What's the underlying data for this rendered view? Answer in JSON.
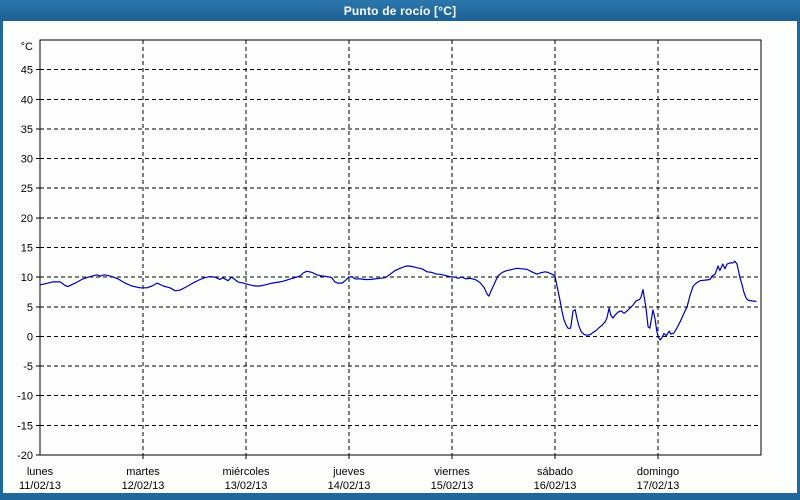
{
  "window": {
    "title": "Punto de rocío [°C]"
  },
  "colors": {
    "chrome": "#20689c",
    "chrome_light": "#2b77ae",
    "chrome_dark": "#1c5f93",
    "plot_background": "#fdfffd",
    "plot_border": "#000000",
    "grid": "#000000",
    "axis_text": "#000000",
    "title_text": "#ffffff",
    "line": "#0000b3"
  },
  "chart_data": {
    "type": "line",
    "title": "Punto de rocío [°C]",
    "unit_label": "°C",
    "ylim": [
      -20,
      50
    ],
    "y_ticks": [
      45,
      40,
      35,
      30,
      25,
      20,
      15,
      10,
      5,
      0,
      -5,
      -10,
      -15,
      -20
    ],
    "x_hours_total": 168,
    "grid": "dashed",
    "legend_position": "none",
    "x_days": [
      {
        "name": "lunes",
        "date": "11/02/13"
      },
      {
        "name": "martes",
        "date": "12/02/13"
      },
      {
        "name": "miércoles",
        "date": "13/02/13"
      },
      {
        "name": "jueves",
        "date": "14/02/13"
      },
      {
        "name": "viernes",
        "date": "15/02/13"
      },
      {
        "name": "sábado",
        "date": "16/02/13"
      },
      {
        "name": "domingo",
        "date": "17/02/13"
      }
    ],
    "series": [
      {
        "name": "Punto de rocío",
        "color": "#0000b3",
        "points": [
          [
            0,
            8.7
          ],
          [
            1.9,
            9.0
          ],
          [
            3,
            9.2
          ],
          [
            4.7,
            9.2
          ],
          [
            5.8,
            8.6
          ],
          [
            6.5,
            8.4
          ],
          [
            8.2,
            9.0
          ],
          [
            10,
            9.7
          ],
          [
            11.7,
            10.1
          ],
          [
            13.3,
            10.4
          ],
          [
            14,
            10.2
          ],
          [
            15.1,
            10.4
          ],
          [
            16.8,
            10.1
          ],
          [
            18.2,
            9.7
          ],
          [
            19.8,
            9.0
          ],
          [
            21.4,
            8.5
          ],
          [
            23.3,
            8.2
          ],
          [
            24.9,
            8.2
          ],
          [
            26.1,
            8.5
          ],
          [
            27.3,
            9.0
          ],
          [
            28.7,
            8.5
          ],
          [
            30.3,
            8.2
          ],
          [
            31.5,
            7.7
          ],
          [
            32.6,
            7.8
          ],
          [
            34.2,
            8.4
          ],
          [
            35.6,
            9.0
          ],
          [
            37.3,
            9.6
          ],
          [
            38.4,
            9.9
          ],
          [
            39.6,
            10.1
          ],
          [
            40.8,
            10.0
          ],
          [
            41.9,
            9.6
          ],
          [
            42.6,
            9.9
          ],
          [
            43.8,
            9.4
          ],
          [
            44.7,
            10.0
          ],
          [
            46.1,
            9.2
          ],
          [
            47.3,
            9.0
          ],
          [
            48.9,
            8.7
          ],
          [
            50.1,
            8.5
          ],
          [
            51.3,
            8.5
          ],
          [
            52.4,
            8.7
          ],
          [
            54.1,
            9.0
          ],
          [
            55.9,
            9.2
          ],
          [
            57.1,
            9.4
          ],
          [
            58.3,
            9.7
          ],
          [
            59.4,
            9.9
          ],
          [
            60.6,
            10.2
          ],
          [
            61.3,
            10.7
          ],
          [
            62.2,
            11.0
          ],
          [
            63.4,
            10.8
          ],
          [
            64.5,
            10.4
          ],
          [
            65.7,
            10.2
          ],
          [
            66.9,
            10.1
          ],
          [
            68,
            9.9
          ],
          [
            68.7,
            9.2
          ],
          [
            69.4,
            9.0
          ],
          [
            70.4,
            9.0
          ],
          [
            71.1,
            9.4
          ],
          [
            72,
            10.0
          ],
          [
            72.7,
            10.1
          ],
          [
            73.4,
            9.7
          ],
          [
            74.6,
            9.7
          ],
          [
            75.7,
            9.6
          ],
          [
            76.9,
            9.6
          ],
          [
            78.1,
            9.7
          ],
          [
            79.2,
            9.8
          ],
          [
            80.4,
            9.9
          ],
          [
            81.6,
            10.5
          ],
          [
            82.7,
            11.1
          ],
          [
            83.9,
            11.5
          ],
          [
            85,
            11.8
          ],
          [
            85.7,
            11.9
          ],
          [
            86.7,
            11.8
          ],
          [
            87.8,
            11.6
          ],
          [
            89,
            11.4
          ],
          [
            90.2,
            10.9
          ],
          [
            91.3,
            10.8
          ],
          [
            92.5,
            10.5
          ],
          [
            93.2,
            10.5
          ],
          [
            94.4,
            10.3
          ],
          [
            95.5,
            10.1
          ],
          [
            96.7,
            10.0
          ],
          [
            97.4,
            9.8
          ],
          [
            98.3,
            10.0
          ],
          [
            99.3,
            9.7
          ],
          [
            100.2,
            9.8
          ],
          [
            101.4,
            9.6
          ],
          [
            102.5,
            9.1
          ],
          [
            103.5,
            8.2
          ],
          [
            104.2,
            7.1
          ],
          [
            104.6,
            6.8
          ],
          [
            105.3,
            8.0
          ],
          [
            106,
            9.1
          ],
          [
            106.7,
            10.2
          ],
          [
            107.7,
            10.8
          ],
          [
            108.8,
            11.1
          ],
          [
            110,
            11.3
          ],
          [
            111.1,
            11.5
          ],
          [
            112.3,
            11.4
          ],
          [
            113.5,
            11.3
          ],
          [
            114.6,
            10.9
          ],
          [
            115.8,
            10.5
          ],
          [
            116.5,
            10.7
          ],
          [
            117.7,
            10.9
          ],
          [
            118.4,
            10.8
          ],
          [
            119.3,
            10.5
          ],
          [
            120,
            10.2
          ],
          [
            120.2,
            9.4
          ],
          [
            120.7,
            7.7
          ],
          [
            121.2,
            6.0
          ],
          [
            121.6,
            4.3
          ],
          [
            122.1,
            2.8
          ],
          [
            122.6,
            1.9
          ],
          [
            123,
            1.4
          ],
          [
            123.5,
            1.3
          ],
          [
            123.7,
            1.7
          ],
          [
            124.2,
            4.3
          ],
          [
            124.7,
            4.5
          ],
          [
            125.1,
            3.1
          ],
          [
            125.6,
            1.7
          ],
          [
            126.1,
            0.8
          ],
          [
            126.8,
            0.3
          ],
          [
            127.5,
            0.2
          ],
          [
            128.2,
            0.3
          ],
          [
            128.9,
            0.7
          ],
          [
            129.6,
            1.0
          ],
          [
            130.3,
            1.5
          ],
          [
            131,
            1.9
          ],
          [
            131.7,
            2.5
          ],
          [
            132.1,
            3.1
          ],
          [
            132.6,
            4.8
          ],
          [
            133,
            3.6
          ],
          [
            133.5,
            3.1
          ],
          [
            134,
            3.6
          ],
          [
            134.7,
            4.1
          ],
          [
            135.4,
            4.3
          ],
          [
            136.1,
            3.9
          ],
          [
            136.8,
            4.3
          ],
          [
            137.5,
            4.8
          ],
          [
            138.2,
            5.3
          ],
          [
            138.9,
            6.0
          ],
          [
            139.6,
            6.2
          ],
          [
            140,
            6.5
          ],
          [
            140.5,
            7.9
          ],
          [
            141.2,
            4.8
          ],
          [
            141.7,
            1.6
          ],
          [
            142.1,
            1.4
          ],
          [
            142.5,
            3.1
          ],
          [
            142.8,
            4.5
          ],
          [
            143.3,
            3.0
          ],
          [
            143.7,
            1.0
          ],
          [
            144,
            0.0
          ],
          [
            144.5,
            -0.6
          ],
          [
            144.9,
            -0.2
          ],
          [
            145.4,
            0.5
          ],
          [
            145.9,
            0.1
          ],
          [
            146.6,
            0.9
          ],
          [
            147,
            0.4
          ],
          [
            147.7,
            0.6
          ],
          [
            148.4,
            1.4
          ],
          [
            149.1,
            2.4
          ],
          [
            149.8,
            3.5
          ],
          [
            150.8,
            5.1
          ],
          [
            151.5,
            7.0
          ],
          [
            152.2,
            8.5
          ],
          [
            152.9,
            9.0
          ],
          [
            153.8,
            9.4
          ],
          [
            155,
            9.5
          ],
          [
            156.1,
            9.6
          ],
          [
            156.6,
            10.2
          ],
          [
            157.3,
            10.5
          ],
          [
            157.7,
            11.3
          ],
          [
            158,
            11.9
          ],
          [
            158.4,
            11.1
          ],
          [
            159.1,
            12.2
          ],
          [
            159.6,
            11.4
          ],
          [
            160.1,
            12.2
          ],
          [
            160.8,
            12.4
          ],
          [
            161.5,
            12.4
          ],
          [
            161.9,
            12.7
          ],
          [
            162.4,
            12.2
          ],
          [
            162.6,
            11.6
          ],
          [
            163.1,
            9.9
          ],
          [
            163.6,
            8.7
          ],
          [
            164,
            7.5
          ],
          [
            164.5,
            6.5
          ],
          [
            165,
            6.1
          ],
          [
            165.9,
            6.0
          ],
          [
            166.8,
            5.9
          ]
        ]
      }
    ]
  }
}
